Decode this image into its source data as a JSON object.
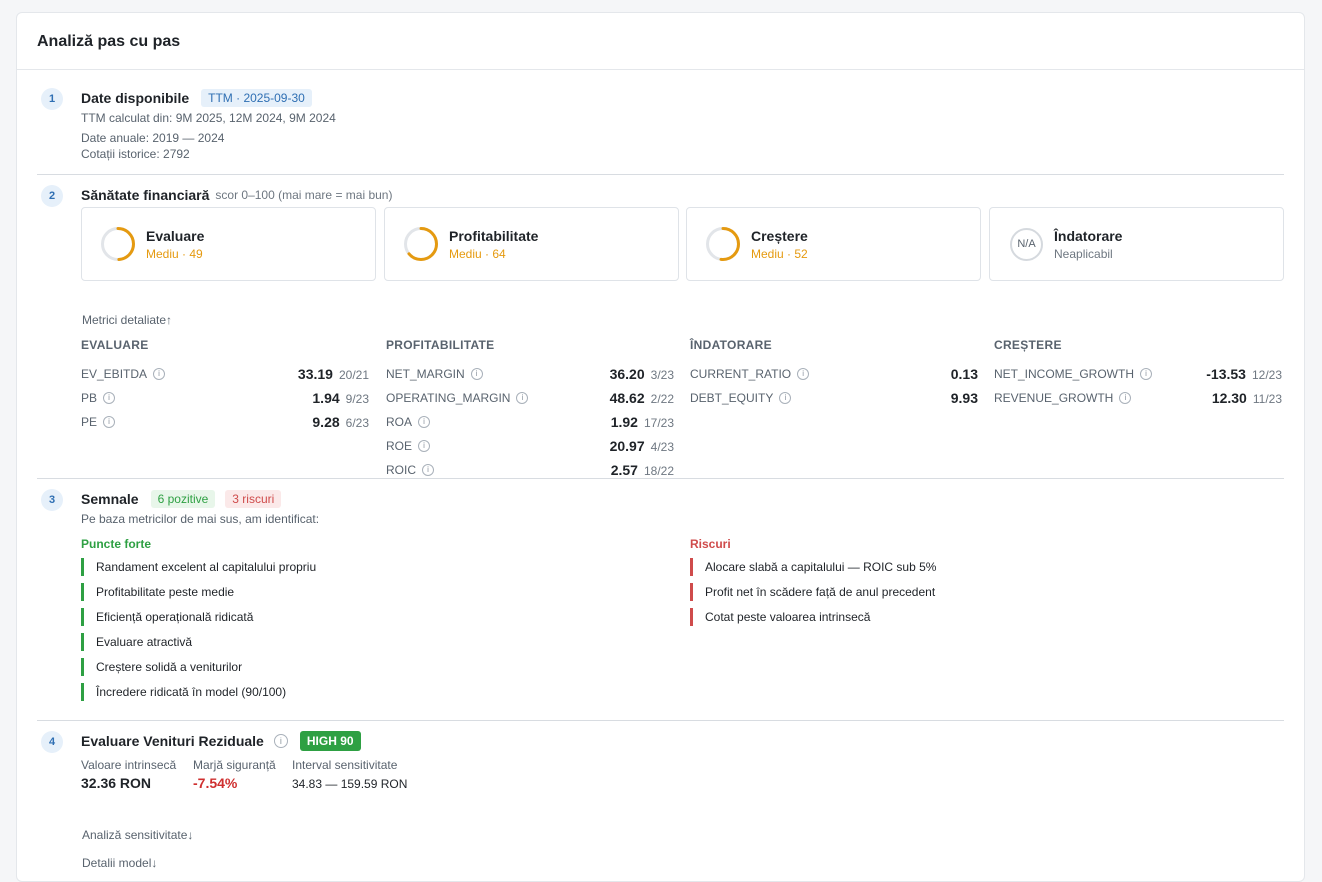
{
  "header": {
    "title": "Analiză pas cu pas"
  },
  "step1": {
    "number": "1",
    "title": "Date disponibile",
    "badge": "TTM · 2025-09-30",
    "ttm_line": "TTM calculat din: 9M 2025, 12M 2024, 9M 2024",
    "annual_line": "Date anuale: 2019 — 2024",
    "quotes_line": "Cotații istorice: 2792"
  },
  "step2": {
    "number": "2",
    "title": "Sănătate financiară",
    "subtitle": "scor 0–100 (mai mare = mai bun)",
    "cards": [
      {
        "name": "Evaluare",
        "status": "Mediu · 49",
        "score": 49,
        "color": "#e59a10"
      },
      {
        "name": "Profitabilitate",
        "status": "Mediu · 64",
        "score": 64,
        "color": "#e59a10"
      },
      {
        "name": "Creștere",
        "status": "Mediu · 52",
        "score": 52,
        "color": "#e59a10"
      },
      {
        "name": "Îndatorare",
        "status": "Neaplicabil",
        "ring_text": "N/A"
      }
    ],
    "details_toggle": "Metrici detaliate↑",
    "columns": [
      {
        "head": "EVALUARE",
        "rows": [
          {
            "name": "EV_EBITDA",
            "value": "33.19",
            "rank": "20/21"
          },
          {
            "name": "PB",
            "value": "1.94",
            "rank": "9/23"
          },
          {
            "name": "PE",
            "value": "9.28",
            "rank": "6/23"
          }
        ]
      },
      {
        "head": "PROFITABILITATE",
        "rows": [
          {
            "name": "NET_MARGIN",
            "value": "36.20",
            "rank": "3/23"
          },
          {
            "name": "OPERATING_MARGIN",
            "value": "48.62",
            "rank": "2/22"
          },
          {
            "name": "ROA",
            "value": "1.92",
            "rank": "17/23"
          },
          {
            "name": "ROE",
            "value": "20.97",
            "rank": "4/23"
          },
          {
            "name": "ROIC",
            "value": "2.57",
            "rank": "18/22"
          }
        ]
      },
      {
        "head": "ÎNDATORARE",
        "rows": [
          {
            "name": "CURRENT_RATIO",
            "value": "0.13",
            "rank": ""
          },
          {
            "name": "DEBT_EQUITY",
            "value": "9.93",
            "rank": ""
          }
        ]
      },
      {
        "head": "CREȘTERE",
        "rows": [
          {
            "name": "NET_INCOME_GROWTH",
            "value": "-13.53",
            "rank": "12/23"
          },
          {
            "name": "REVENUE_GROWTH",
            "value": "12.30",
            "rank": "11/23"
          }
        ]
      }
    ]
  },
  "step3": {
    "number": "3",
    "title": "Semnale",
    "positive_badge": "6 pozitive",
    "risk_badge": "3 riscuri",
    "intro": "Pe baza metricilor de mai sus, am identificat:",
    "strengths_head": "Puncte forte",
    "strengths": [
      "Randament excelent al capitalului propriu",
      "Profitabilitate peste medie",
      "Eficiență operațională ridicată",
      "Evaluare atractivă",
      "Creștere solidă a veniturilor",
      "Încredere ridicată în model (90/100)"
    ],
    "risks_head": "Riscuri",
    "risks": [
      "Alocare slabă a capitalului — ROIC sub 5%",
      "Profit net în scădere față de anul precedent",
      "Cotat peste valoarea intrinsecă"
    ]
  },
  "step4": {
    "number": "4",
    "title": "Evaluare Venituri Reziduale",
    "confidence_badge": "HIGH 90",
    "intrinsic_label": "Valoare intrinsecă",
    "intrinsic_value": "32.36 RON",
    "margin_label": "Marjă siguranță",
    "margin_value": "-7.54%",
    "interval_label": "Interval sensitivitate",
    "interval_value": "34.83 — 159.59 RON",
    "sensitivity_toggle": "Analiză sensitivitate↓",
    "model_toggle": "Detalii model↓"
  }
}
